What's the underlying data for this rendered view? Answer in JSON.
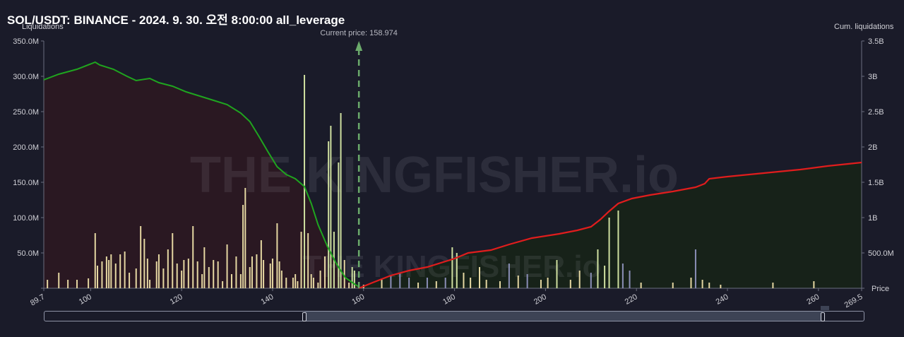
{
  "header": {
    "title": "SOL/USDT: BINANCE - 2024. 9. 30. 오전 8:00:00 all_leverage"
  },
  "chart_data": {
    "type": "bar",
    "title": "SOL/USDT: BINANCE - 2024. 9. 30. 오전 8:00:00 all_leverage",
    "left_axis_label": "Liquidations",
    "right_axis_label": "Cum. liquidations",
    "x_axis_label": "Price",
    "x_range": [
      89.7,
      269.5
    ],
    "left_ylim": [
      0,
      350
    ],
    "right_ylim": [
      0,
      3.5
    ],
    "left_ticks": [
      "0",
      "50.0M",
      "100.0M",
      "150.0M",
      "200.0M",
      "250.0M",
      "300.0M",
      "350.0M"
    ],
    "right_ticks": [
      "0",
      "500.0M",
      "1B",
      "1.5B",
      "2B",
      "2.5B",
      "3B",
      "3.5B"
    ],
    "x_ticks": [
      "89.7",
      "100",
      "120",
      "140",
      "160",
      "180",
      "200",
      "220",
      "240",
      "260",
      "269.5"
    ],
    "current_price_label": "Current price: 158.974",
    "current_price": 158.974,
    "colors": {
      "short_cum_line": "#1fa51f",
      "long_cum_line": "#e01d1d",
      "short_fill": "#2a1822",
      "long_fill": "#172219",
      "bar_high": "#cfe0a0",
      "bar_low": "#e5d7a2",
      "bar_alt": "#8b8fb8",
      "current_price_line": "#6bab6b"
    },
    "cum_short_series": {
      "name": "",
      "unit": "B",
      "points": [
        [
          89.7,
          2.95
        ],
        [
          93,
          3.03
        ],
        [
          97,
          3.1
        ],
        [
          101,
          3.2
        ],
        [
          102,
          3.16
        ],
        [
          105,
          3.1
        ],
        [
          108,
          3.0
        ],
        [
          110,
          2.94
        ],
        [
          113,
          2.97
        ],
        [
          115,
          2.91
        ],
        [
          118,
          2.86
        ],
        [
          121,
          2.78
        ],
        [
          124,
          2.72
        ],
        [
          127,
          2.66
        ],
        [
          130,
          2.6
        ],
        [
          133,
          2.48
        ],
        [
          135,
          2.36
        ],
        [
          137,
          2.15
        ],
        [
          139,
          1.93
        ],
        [
          141,
          1.72
        ],
        [
          143,
          1.61
        ],
        [
          145,
          1.55
        ],
        [
          147,
          1.44
        ],
        [
          148.5,
          1.2
        ],
        [
          150,
          0.9
        ],
        [
          152,
          0.6
        ],
        [
          154,
          0.35
        ],
        [
          156,
          0.15
        ],
        [
          158,
          0.06
        ],
        [
          158.974,
          0.02
        ]
      ]
    },
    "cum_long_series": {
      "name": "",
      "unit": "B",
      "points": [
        [
          158.974,
          0.0
        ],
        [
          162,
          0.08
        ],
        [
          166,
          0.18
        ],
        [
          170,
          0.25
        ],
        [
          174,
          0.3
        ],
        [
          178,
          0.38
        ],
        [
          180,
          0.42
        ],
        [
          183,
          0.5
        ],
        [
          188,
          0.54
        ],
        [
          192,
          0.62
        ],
        [
          197,
          0.71
        ],
        [
          203,
          0.77
        ],
        [
          207,
          0.82
        ],
        [
          210,
          0.87
        ],
        [
          212,
          0.97
        ],
        [
          214,
          1.09
        ],
        [
          216,
          1.2
        ],
        [
          219,
          1.27
        ],
        [
          223,
          1.32
        ],
        [
          228,
          1.37
        ],
        [
          233,
          1.43
        ],
        [
          235,
          1.48
        ],
        [
          236,
          1.55
        ],
        [
          240,
          1.58
        ],
        [
          248,
          1.63
        ],
        [
          256,
          1.68
        ],
        [
          262,
          1.73
        ],
        [
          269.5,
          1.78
        ]
      ]
    },
    "bars_series": {
      "name": "",
      "unit": "M",
      "bars": [
        [
          90.5,
          12,
          "low"
        ],
        [
          93,
          22,
          "low"
        ],
        [
          95,
          12,
          "low"
        ],
        [
          97,
          12,
          "low"
        ],
        [
          99.5,
          14,
          "low"
        ],
        [
          101,
          78,
          "low"
        ],
        [
          101.5,
          32,
          "low"
        ],
        [
          102.5,
          38,
          "low"
        ],
        [
          103.5,
          45,
          "low"
        ],
        [
          104,
          40,
          "low"
        ],
        [
          104.5,
          48,
          "low"
        ],
        [
          105.5,
          35,
          "low"
        ],
        [
          106.5,
          48,
          "low"
        ],
        [
          107.5,
          52,
          "low"
        ],
        [
          108.5,
          22,
          "low"
        ],
        [
          110,
          28,
          "low"
        ],
        [
          111,
          88,
          "low"
        ],
        [
          111.8,
          70,
          "low"
        ],
        [
          112.5,
          42,
          "low"
        ],
        [
          113,
          12,
          "low"
        ],
        [
          114.5,
          38,
          "low"
        ],
        [
          115,
          48,
          "low"
        ],
        [
          116,
          28,
          "low"
        ],
        [
          117,
          55,
          "low"
        ],
        [
          118,
          78,
          "low"
        ],
        [
          119,
          35,
          "low"
        ],
        [
          120,
          25,
          "low"
        ],
        [
          120.5,
          40,
          "low"
        ],
        [
          121.5,
          42,
          "low"
        ],
        [
          122.5,
          88,
          "low"
        ],
        [
          123.5,
          38,
          "low"
        ],
        [
          124.5,
          20,
          "low"
        ],
        [
          125,
          58,
          "low"
        ],
        [
          126,
          30,
          "low"
        ],
        [
          127,
          40,
          "low"
        ],
        [
          128,
          38,
          "low"
        ],
        [
          129,
          10,
          "low"
        ],
        [
          130,
          62,
          "low"
        ],
        [
          131,
          20,
          "low"
        ],
        [
          132,
          45,
          "low"
        ],
        [
          133,
          20,
          "low"
        ],
        [
          133.5,
          118,
          "low"
        ],
        [
          134,
          142,
          "low"
        ],
        [
          135,
          30,
          "low"
        ],
        [
          135.5,
          45,
          "low"
        ],
        [
          136.5,
          48,
          "low"
        ],
        [
          137.5,
          68,
          "low"
        ],
        [
          138,
          40,
          "low"
        ],
        [
          139.5,
          35,
          "low"
        ],
        [
          140,
          42,
          "low"
        ],
        [
          141,
          92,
          "low"
        ],
        [
          141.5,
          38,
          "low"
        ],
        [
          142,
          25,
          "low"
        ],
        [
          143,
          15,
          "low"
        ],
        [
          144.5,
          15,
          "low"
        ],
        [
          145,
          20,
          "low"
        ],
        [
          145.5,
          10,
          "low"
        ],
        [
          146.3,
          80,
          "low"
        ],
        [
          147,
          302,
          "high"
        ],
        [
          147.8,
          78,
          "low"
        ],
        [
          148.5,
          20,
          "low"
        ],
        [
          149,
          15,
          "low"
        ],
        [
          150,
          8,
          "low"
        ],
        [
          150.5,
          25,
          "low"
        ],
        [
          151.5,
          45,
          "low"
        ],
        [
          152.3,
          208,
          "high"
        ],
        [
          152.8,
          230,
          "high"
        ],
        [
          153.5,
          80,
          "high"
        ],
        [
          154.5,
          178,
          "high"
        ],
        [
          155,
          248,
          "high"
        ],
        [
          155.8,
          40,
          "low"
        ],
        [
          156.8,
          8,
          "low"
        ],
        [
          157.5,
          30,
          "high"
        ],
        [
          158,
          25,
          "high"
        ],
        [
          160,
          5,
          "low"
        ],
        [
          164,
          12,
          "low"
        ],
        [
          166,
          18,
          "alt"
        ],
        [
          168,
          22,
          "alt"
        ],
        [
          170,
          15,
          "alt"
        ],
        [
          172,
          8,
          "low"
        ],
        [
          174,
          15,
          "alt"
        ],
        [
          176,
          10,
          "low"
        ],
        [
          178,
          15,
          "alt"
        ],
        [
          179.5,
          58,
          "high"
        ],
        [
          180.5,
          50,
          "high"
        ],
        [
          182,
          22,
          "low"
        ],
        [
          183.5,
          15,
          "low"
        ],
        [
          185.5,
          30,
          "low"
        ],
        [
          187,
          12,
          "low"
        ],
        [
          190,
          10,
          "low"
        ],
        [
          192,
          35,
          "alt"
        ],
        [
          194,
          18,
          "low"
        ],
        [
          196,
          20,
          "alt"
        ],
        [
          199,
          12,
          "low"
        ],
        [
          200.5,
          15,
          "low"
        ],
        [
          202.5,
          40,
          "high"
        ],
        [
          205.5,
          12,
          "low"
        ],
        [
          207.5,
          25,
          "low"
        ],
        [
          210,
          22,
          "alt"
        ],
        [
          211.5,
          55,
          "high"
        ],
        [
          213,
          32,
          "high"
        ],
        [
          214,
          100,
          "high"
        ],
        [
          216,
          110,
          "high"
        ],
        [
          217,
          35,
          "alt"
        ],
        [
          218.5,
          25,
          "alt"
        ],
        [
          221,
          8,
          "low"
        ],
        [
          228,
          8,
          "low"
        ],
        [
          232,
          15,
          "low"
        ],
        [
          233,
          55,
          "alt"
        ],
        [
          234.5,
          12,
          "low"
        ],
        [
          236,
          8,
          "low"
        ],
        [
          238.5,
          5,
          "low"
        ],
        [
          250,
          8,
          "low"
        ],
        [
          259,
          10,
          "low"
        ]
      ]
    }
  }
}
